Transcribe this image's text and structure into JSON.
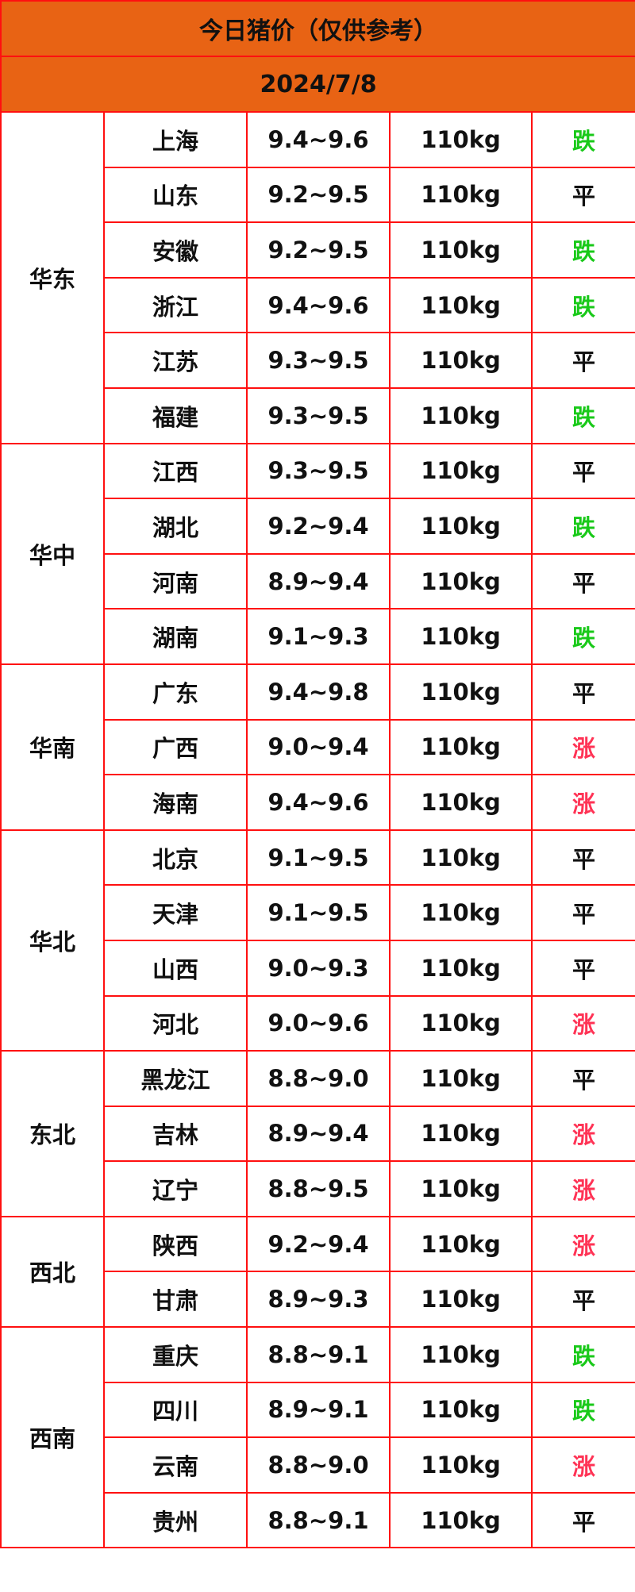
{
  "title": "今日猪价（仅供参考）",
  "date": "2024/7/8",
  "colors": {
    "header_bg": "#e86314",
    "border": "#ff1010",
    "down": "#19c919",
    "up": "#ff3355",
    "flat": "#111111"
  },
  "regions": [
    {
      "name": "华东",
      "rows": [
        {
          "province": "上海",
          "price": "9.4~9.6",
          "weight": "110kg",
          "trend": "跌"
        },
        {
          "province": "山东",
          "price": "9.2~9.5",
          "weight": "110kg",
          "trend": "平"
        },
        {
          "province": "安徽",
          "price": "9.2~9.5",
          "weight": "110kg",
          "trend": "跌"
        },
        {
          "province": "浙江",
          "price": "9.4~9.6",
          "weight": "110kg",
          "trend": "跌"
        },
        {
          "province": "江苏",
          "price": "9.3~9.5",
          "weight": "110kg",
          "trend": "平"
        },
        {
          "province": "福建",
          "price": "9.3~9.5",
          "weight": "110kg",
          "trend": "跌"
        }
      ]
    },
    {
      "name": "华中",
      "rows": [
        {
          "province": "江西",
          "price": "9.3~9.5",
          "weight": "110kg",
          "trend": "平"
        },
        {
          "province": "湖北",
          "price": "9.2~9.4",
          "weight": "110kg",
          "trend": "跌"
        },
        {
          "province": "河南",
          "price": "8.9~9.4",
          "weight": "110kg",
          "trend": "平"
        },
        {
          "province": "湖南",
          "price": "9.1~9.3",
          "weight": "110kg",
          "trend": "跌"
        }
      ]
    },
    {
      "name": "华南",
      "rows": [
        {
          "province": "广东",
          "price": "9.4~9.8",
          "weight": "110kg",
          "trend": "平"
        },
        {
          "province": "广西",
          "price": "9.0~9.4",
          "weight": "110kg",
          "trend": "涨"
        },
        {
          "province": "海南",
          "price": "9.4~9.6",
          "weight": "110kg",
          "trend": "涨"
        }
      ]
    },
    {
      "name": "华北",
      "rows": [
        {
          "province": "北京",
          "price": "9.1~9.5",
          "weight": "110kg",
          "trend": "平"
        },
        {
          "province": "天津",
          "price": "9.1~9.5",
          "weight": "110kg",
          "trend": "平"
        },
        {
          "province": "山西",
          "price": "9.0~9.3",
          "weight": "110kg",
          "trend": "平"
        },
        {
          "province": "河北",
          "price": "9.0~9.6",
          "weight": "110kg",
          "trend": "涨"
        }
      ]
    },
    {
      "name": "东北",
      "rows": [
        {
          "province": "黑龙江",
          "price": "8.8~9.0",
          "weight": "110kg",
          "trend": "平"
        },
        {
          "province": "吉林",
          "price": "8.9~9.4",
          "weight": "110kg",
          "trend": "涨"
        },
        {
          "province": "辽宁",
          "price": "8.8~9.5",
          "weight": "110kg",
          "trend": "涨"
        }
      ]
    },
    {
      "name": "西北",
      "rows": [
        {
          "province": "陕西",
          "price": "9.2~9.4",
          "weight": "110kg",
          "trend": "涨"
        },
        {
          "province": "甘肃",
          "price": "8.9~9.3",
          "weight": "110kg",
          "trend": "平"
        }
      ]
    },
    {
      "name": "西南",
      "rows": [
        {
          "province": "重庆",
          "price": "8.8~9.1",
          "weight": "110kg",
          "trend": "跌"
        },
        {
          "province": "四川",
          "price": "8.9~9.1",
          "weight": "110kg",
          "trend": "跌"
        },
        {
          "province": "云南",
          "price": "8.8~9.0",
          "weight": "110kg",
          "trend": "涨"
        },
        {
          "province": "贵州",
          "price": "8.8~9.1",
          "weight": "110kg",
          "trend": "平"
        }
      ]
    }
  ]
}
